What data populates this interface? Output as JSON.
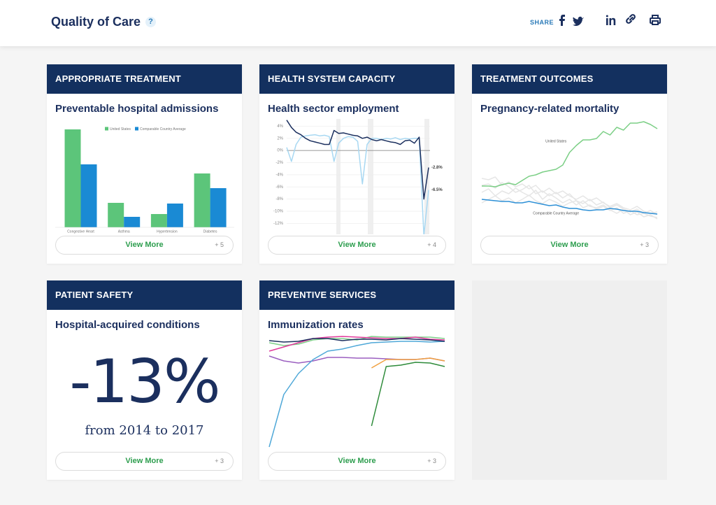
{
  "header": {
    "title": "Quality of Care",
    "help": "?",
    "share": "SHARE"
  },
  "cards": [
    {
      "category": "APPROPRIATE TREATMENT",
      "title": "Preventable hospital admissions",
      "button": "View More",
      "more": "+ 5",
      "chart": {
        "type": "bar",
        "categories": [
          "Congestive Heart",
          "Asthma",
          "Hypertension",
          "Diabetes"
        ],
        "ylim": [
          0,
          150
        ],
        "series": [
          {
            "name": "United States",
            "color": "#5cc57a",
            "values": [
              140,
              35,
              19,
              77
            ]
          },
          {
            "name": "Comparable Country Average",
            "color": "#1a8ad4",
            "values": [
              90,
              15,
              34,
              56
            ]
          }
        ]
      }
    },
    {
      "category": "HEALTH SYSTEM CAPACITY",
      "title": "Health sector employment",
      "button": "View More",
      "more": "+ 4",
      "chart": {
        "type": "line",
        "ylim": [
          -13.8,
          5.2
        ],
        "yticks": [
          {
            "value": 4,
            "label": "4%"
          },
          {
            "value": 2,
            "label": "2%"
          },
          {
            "value": 0,
            "label": "0%"
          },
          {
            "value": -2,
            "label": "-2%"
          },
          {
            "value": -4,
            "label": "-4%"
          },
          {
            "value": -6,
            "label": "-6%"
          },
          {
            "value": -8,
            "label": "-8%"
          },
          {
            "value": -10,
            "label": "-10%"
          },
          {
            "value": -12,
            "label": "-12%"
          }
        ],
        "series": [
          {
            "color": "#a8d8f2",
            "values": [
              0.5,
              -1.8,
              1.0,
              2.2,
              2.4,
              2.5,
              2.6,
              2.4,
              2.5,
              2.3,
              -1.8,
              1.2,
              2.0,
              2.3,
              2.2,
              1.5,
              -5.5,
              1.0,
              2.0,
              2.0,
              1.8,
              2.0,
              1.9,
              2.1,
              1.8,
              2.0,
              1.9,
              2.0,
              2.0,
              -14,
              -6.5
            ],
            "end_label": "-6.5%"
          },
          {
            "color": "#1b2f5e",
            "values": [
              5.0,
              3.8,
              3.0,
              2.6,
              2.0,
              1.6,
              1.4,
              1.2,
              1.0,
              1.0,
              3.3,
              2.8,
              2.9,
              2.7,
              2.5,
              2.4,
              2.0,
              2.2,
              1.8,
              1.6,
              1.8,
              1.6,
              1.4,
              1.3,
              1.0,
              1.6,
              1.7,
              1.2,
              2.2,
              -8.0,
              -2.8
            ],
            "end_label": "-2.8%"
          }
        ]
      }
    },
    {
      "category": "TREATMENT OUTCOMES",
      "title": "Pregnancy-related mortality",
      "button": "View More",
      "more": "+ 3",
      "chart": {
        "type": "line",
        "ylim": [
          0,
          165
        ],
        "series": [
          {
            "color": "#e6e6e6",
            "values": [
              80,
              78,
              82,
              70,
              75,
              68,
              72,
              65,
              70,
              60,
              66,
              58,
              62,
              55,
              50,
              55,
              48,
              52,
              45,
              40,
              44,
              38,
              35,
              40,
              33,
              30,
              32
            ]
          },
          {
            "color": "#e6e6e6",
            "values": [
              60,
              65,
              55,
              62,
              58,
              66,
              60,
              55,
              63,
              50,
              58,
              52,
              45,
              50,
              42,
              48,
              40,
              38,
              42,
              35,
              30,
              36,
              28,
              32,
              25,
              28,
              22
            ]
          },
          {
            "color": "#e6e6e6",
            "values": [
              45,
              50,
              55,
              48,
              52,
              45,
              50,
              56,
              48,
              44,
              50,
              46,
              40,
              45,
              48,
              38,
              42,
              36,
              40,
              34,
              38,
              30,
              34,
              28,
              30,
              26,
              24
            ]
          },
          {
            "color": "#e6e6e6",
            "values": [
              70,
              72,
              66,
              74,
              68,
              60,
              64,
              70,
              58,
              62,
              55,
              60,
              52,
              58,
              48,
              44,
              50,
              42,
              46,
              38,
              42,
              36,
              32,
              36,
              30,
              34,
              28
            ]
          },
          {
            "name": "United States",
            "color": "#7ccf86",
            "values": [
              69,
              69,
              68,
              71,
              73,
              71,
              77,
              83,
              85,
              89,
              91,
              93,
              99,
              117,
              127,
              135,
              135,
              137,
              147,
              142,
              153,
              149,
              159,
              159,
              161,
              157,
              151
            ]
          },
          {
            "name": "Comparable Country Average",
            "color": "#2e90d6",
            "values": [
              50,
              49,
              48,
              47,
              47,
              45,
              45,
              47,
              45,
              43,
              41,
              42,
              39,
              37,
              37,
              35,
              34,
              35,
              35,
              37,
              36,
              34,
              33,
              33,
              31,
              30,
              29
            ]
          }
        ]
      }
    },
    {
      "category": "PATIENT SAFETY",
      "title": "Hospital-acquired conditions",
      "button": "View More",
      "more": "+ 3",
      "stat": "-13%",
      "stat_caption": "from 2014 to 2017"
    },
    {
      "category": "PREVENTIVE SERVICES",
      "title": "Immunization rates",
      "button": "View More",
      "more": "+ 3",
      "chart": {
        "type": "line",
        "ylim": [
          0,
          165
        ],
        "series": [
          {
            "color": "#9b5fc0",
            "values": [
              135,
              128,
              125,
              128,
              133,
              133,
              132,
              132,
              131,
              130,
              130,
              132,
              128
            ]
          },
          {
            "color": "#f0a040",
            "values": [
              null,
              null,
              null,
              null,
              null,
              null,
              null,
              118,
              130,
              130,
              130,
              132,
              128
            ]
          },
          {
            "color": "#2e8b3a",
            "values": [
              null,
              null,
              null,
              null,
              null,
              null,
              null,
              35,
              120,
              122,
              126,
              125,
              120
            ]
          },
          {
            "color": "#7fd08a",
            "values": [
              154,
              150,
              152,
              158,
              160,
              160,
              158,
              163,
              162,
              162,
              162,
              162,
              160
            ]
          },
          {
            "color": "#e0399b",
            "values": [
              142,
              148,
              154,
              160,
              162,
              163,
              162,
              161,
              160,
              160,
              162,
              159,
              158
            ]
          },
          {
            "color": "#4fa8d8",
            "values": [
              5,
              80,
              110,
              130,
              142,
              145,
              150,
              154,
              155,
              156,
              156,
              155,
              156
            ]
          },
          {
            "color": "#1b2f5e",
            "values": [
              157,
              155,
              156,
              160,
              160,
              157,
              159,
              159,
              158,
              160,
              159,
              158,
              156
            ]
          }
        ]
      }
    }
  ]
}
